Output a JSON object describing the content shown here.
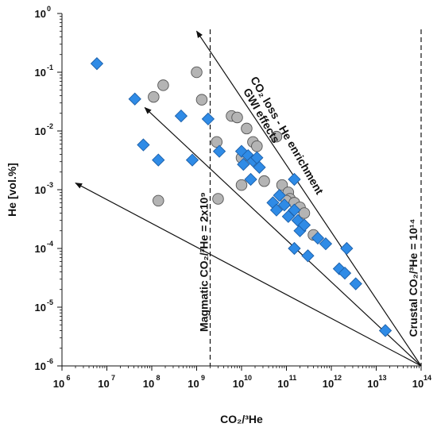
{
  "chart_data": {
    "type": "scatter",
    "title": "",
    "xlabel": "CO₂/³He",
    "ylabel": "He [vol.%]",
    "xscale": "log",
    "yscale": "log",
    "xlim": [
      1000000,
      100000000000000
    ],
    "ylim": [
      1e-06,
      1
    ],
    "x_tick_exponents": [
      6,
      7,
      8,
      9,
      10,
      11,
      12,
      13,
      14
    ],
    "y_tick_exponents": [
      -6,
      -5,
      -4,
      -3,
      -2,
      -1,
      0
    ],
    "tick_base": "10",
    "grid": false,
    "legend": "none",
    "series": [
      {
        "marker": "diamond",
        "color": "#2f8be6",
        "points": [
          [
            6000000.0,
            0.14
          ],
          [
            42000000.0,
            0.035
          ],
          [
            65000000.0,
            0.0058
          ],
          [
            140000000.0,
            0.0032
          ],
          [
            450000000.0,
            0.018
          ],
          [
            800000000.0,
            0.0032
          ],
          [
            3200000000.0,
            0.0045
          ],
          [
            1800000000.0,
            0.016
          ],
          [
            10000000000.0,
            0.0045
          ],
          [
            11000000000.0,
            0.0027
          ],
          [
            14000000000.0,
            0.0038
          ],
          [
            16000000000.0,
            0.0015
          ],
          [
            18000000000.0,
            0.0031
          ],
          [
            22000000000.0,
            0.0035
          ],
          [
            25000000000.0,
            0.0024
          ],
          [
            50000000000.0,
            0.0006
          ],
          [
            60000000000.0,
            0.00045
          ],
          [
            70000000000.0,
            0.0008
          ],
          [
            90000000000.0,
            0.00055
          ],
          [
            110000000000.0,
            0.00035
          ],
          [
            150000000000.0,
            0.0015
          ],
          [
            150000000000.0,
            0.00045
          ],
          [
            180000000000.0,
            0.0003
          ],
          [
            200000000000.0,
            0.0002
          ],
          [
            250000000000.0,
            0.00025
          ],
          [
            150000000000.0,
            0.0001
          ],
          [
            300000000000.0,
            7.5e-05
          ],
          [
            500000000000.0,
            0.00015
          ],
          [
            750000000000.0,
            0.00012
          ],
          [
            1500000000000.0,
            4.5e-05
          ],
          [
            2000000000000.0,
            3.8e-05
          ],
          [
            2200000000000.0,
            0.0001
          ],
          [
            3500000000000.0,
            2.5e-05
          ],
          [
            16000000000000.0,
            4e-06
          ]
        ]
      },
      {
        "marker": "circle",
        "color": "#b4b4b4",
        "points": [
          [
            110000000.0,
            0.038
          ],
          [
            180000000.0,
            0.06
          ],
          [
            140000000.0,
            0.00065
          ],
          [
            1000000000.0,
            0.1
          ],
          [
            1300000000.0,
            0.034
          ],
          [
            2800000000.0,
            0.0065
          ],
          [
            3000000000.0,
            0.0007
          ],
          [
            6000000000.0,
            0.018
          ],
          [
            8000000000.0,
            0.017
          ],
          [
            13000000000.0,
            0.011
          ],
          [
            10000000000.0,
            0.0035
          ],
          [
            10000000000.0,
            0.0012
          ],
          [
            18000000000.0,
            0.0065
          ],
          [
            22000000000.0,
            0.0055
          ],
          [
            32000000000.0,
            0.0014
          ],
          [
            60000000000.0,
            0.008
          ],
          [
            80000000000.0,
            0.0012
          ],
          [
            110000000000.0,
            0.0009
          ],
          [
            120000000000.0,
            0.0007
          ],
          [
            100000000000.0,
            0.00065
          ],
          [
            150000000000.0,
            0.0006
          ],
          [
            200000000000.0,
            0.0005
          ],
          [
            250000000000.0,
            0.0004
          ],
          [
            400000000000.0,
            0.00017
          ]
        ]
      }
    ],
    "reference_lines": [
      {
        "x": 2000000000,
        "label": "Magmatic CO₂/³He = 2x10⁹"
      },
      {
        "x": 100000000000000,
        "label": "Crustal CO₂/³He = 10¹⁴"
      }
    ],
    "arrows": [
      {
        "from": [
          100000000000000,
          1e-06
        ],
        "to": [
          1000000000,
          0.5
        ]
      },
      {
        "from": [
          100000000000000,
          1e-06
        ],
        "to": [
          70000000,
          0.025
        ]
      },
      {
        "from": [
          100000000000000,
          1e-06
        ],
        "to": [
          2000000,
          0.0013
        ]
      }
    ],
    "annotations": [
      "GWI effects",
      "CO₂ loss - He enrichment"
    ]
  }
}
